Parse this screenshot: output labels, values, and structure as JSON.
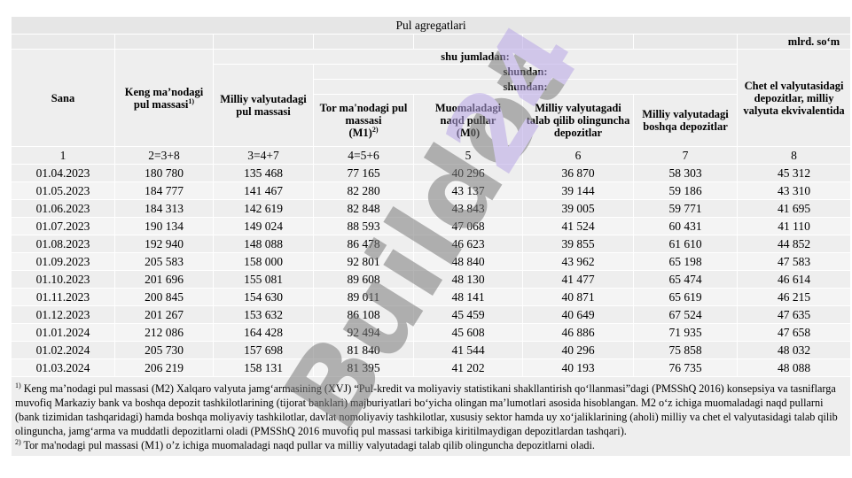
{
  "title": "Pul agregatlari",
  "unit": "mlrd. so‘m",
  "headers": {
    "date": "Sana",
    "m2": "Keng ma’nodagi pul massasi",
    "m2_sup": "1)",
    "national": "Milliy valyutadagi pul massasi",
    "incl": "shu jumladan:",
    "of_which1": "shundan:",
    "of_which2": "shundan:",
    "m1": "Tor ma'nodagi pul massasi",
    "m1_short": "(M1)",
    "m1_sup": "2)",
    "m0_line1": "Muomaladagi",
    "m0_line2": "naqd pullar",
    "m0_line3": "(M0)",
    "demand": "Milliy valyutagadi talab qilib olinguncha depozitlar",
    "other": "Milliy valyutadagi boshqa depozitlar",
    "foreign": "Chet el valyutasidagi depozitlar, milliy valyuta ekvivalentida"
  },
  "col_numbers": [
    "1",
    "2=3+8",
    "3=4+7",
    "4=5+6",
    "5",
    "6",
    "7",
    "8"
  ],
  "rows": [
    [
      "01.04.2023",
      "180 780",
      "135 468",
      "77 165",
      "40 296",
      "36 870",
      "58 303",
      "45 312"
    ],
    [
      "01.05.2023",
      "184 777",
      "141 467",
      "82 280",
      "43 137",
      "39 144",
      "59 186",
      "43 310"
    ],
    [
      "01.06.2023",
      "184 313",
      "142 619",
      "82 848",
      "43 843",
      "39 005",
      "59 771",
      "41 695"
    ],
    [
      "01.07.2023",
      "190 134",
      "149 024",
      "88 593",
      "47 068",
      "41 524",
      "60 431",
      "41 110"
    ],
    [
      "01.08.2023",
      "192 940",
      "148 088",
      "86 478",
      "46 623",
      "39 855",
      "61 610",
      "44 852"
    ],
    [
      "01.09.2023",
      "205 583",
      "158 000",
      "92 801",
      "48 840",
      "43 962",
      "65 198",
      "47 583"
    ],
    [
      "01.10.2023",
      "201 696",
      "155 081",
      "89 608",
      "48 130",
      "41 477",
      "65 474",
      "46 614"
    ],
    [
      "01.11.2023",
      "200 845",
      "154 630",
      "89 011",
      "48 141",
      "40 871",
      "65 619",
      "46 215"
    ],
    [
      "01.12.2023",
      "201 267",
      "153 632",
      "86 108",
      "45 459",
      "40 649",
      "67 524",
      "47 635"
    ],
    [
      "01.01.2024",
      "212 086",
      "164 428",
      "92 494",
      "45 608",
      "46 886",
      "71 935",
      "47 658"
    ],
    [
      "01.02.2024",
      "205 730",
      "157 698",
      "81 840",
      "41 544",
      "40 296",
      "75 858",
      "48 032"
    ],
    [
      "01.03.2024",
      "206 219",
      "158 131",
      "81 395",
      "41 202",
      "40 193",
      "76 735",
      "48 088"
    ]
  ],
  "notes": {
    "n1_sup": "1)",
    "n1": " Keng ma’nodagi pul massasi (M2) Xalqaro valyuta jamg‘armasining (XVJ) “Pul-kredit va moliyaviy statistikani shakllantirish qo‘llanmasi”dagi (PMSShQ 2016) konsepsiya va tasniflarga muvofiq Markaziy bank va boshqa depozit tashkilotlarining (tijorat banklari) majburiyatlari bo‘yicha olingan ma’lumotlari asosida hisoblangan. M2 o‘z ichiga muomaladagi naqd pullarni (bank tizimidan tashqaridagi) hamda boshqa moliyaviy tashkilotlar, davlat nomoliyaviy tashkilotlar, xususiy sektor hamda uy xo‘jaliklarining (aholi) milliy va chet el valyutasidagi talab qilib olinguncha, jamg‘arma va muddatli depozitlarni oladi (PMSShQ 2016 muvofiq pul massasi tarkibiga kiritilmaydigan depozitlardan tashqari).",
    "n2_sup": "2)",
    "n2": " Tor ma'nodagi pul massasi (M1) o’z ichiga muomaladagi naqd pullar va milliy valyutadagi talab qilib olinguncha depozitlarni oladi."
  },
  "watermark": {
    "text": "Buildot",
    "number": "24",
    "color": "#7a7a7a",
    "accent": "#b8a6e6"
  }
}
